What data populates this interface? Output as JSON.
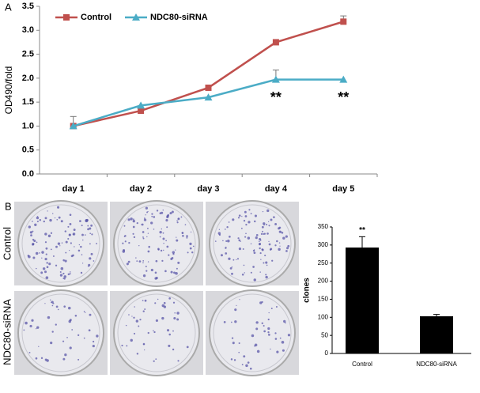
{
  "panel_labels": [
    "A",
    "B"
  ],
  "plates": {
    "row_labels": [
      "Control",
      "NDC80-siRNA"
    ]
  },
  "chart_data": [
    {
      "type": "line",
      "y_label": "OD490/fold",
      "categories": [
        "day 1",
        "day 2",
        "day 3",
        "day 4",
        "day 5"
      ],
      "series": [
        {
          "name": "Control",
          "color": "#c0504d",
          "marker": "square",
          "values": [
            1.0,
            1.32,
            1.8,
            2.75,
            3.18
          ],
          "errors": [
            null,
            null,
            null,
            null,
            0.12
          ]
        },
        {
          "name": "NDC80-siRNA",
          "color": "#4bacc6",
          "marker": "triangle",
          "values": [
            1.0,
            1.43,
            1.6,
            1.97,
            1.97
          ],
          "errors": [
            0.2,
            null,
            null,
            0.2,
            null
          ]
        }
      ],
      "significance": [
        null,
        null,
        null,
        "**",
        "**"
      ],
      "ylim": [
        0,
        3.5
      ],
      "yticks": [
        {
          "value": 0,
          "label": "0.0"
        },
        0.5,
        {
          "value": 1,
          "label": "1.0"
        },
        1.5,
        {
          "value": 2,
          "label": "2.0"
        },
        2.5,
        {
          "value": 3,
          "label": "3.0"
        },
        3.5
      ],
      "legend": "top-left"
    },
    {
      "type": "bar",
      "y_label": "clones",
      "color": "#000000",
      "categories": [
        "Control",
        "NDC80-siRNA"
      ],
      "values": [
        293,
        103
      ],
      "errors": [
        30,
        5
      ],
      "significance": [
        "**",
        null
      ],
      "ylim": [
        0,
        350
      ],
      "yticks": [
        0,
        50,
        100,
        150,
        200,
        250,
        300,
        350
      ]
    }
  ]
}
